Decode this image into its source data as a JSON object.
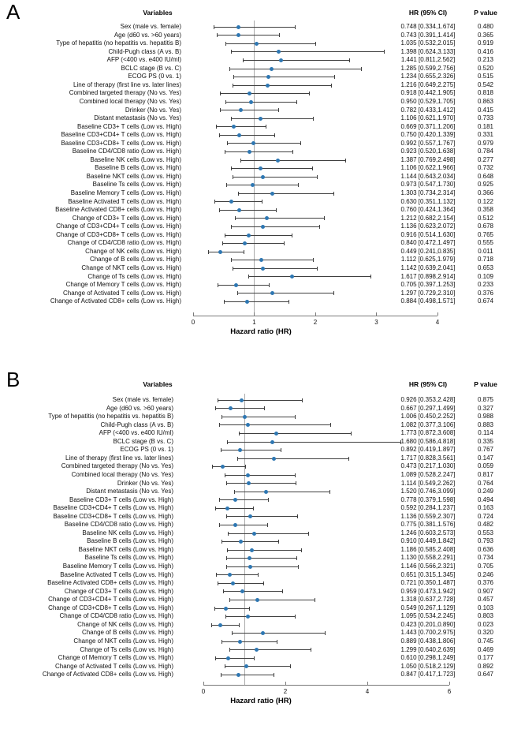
{
  "colors": {
    "point": "#2e77b2",
    "ci_bar": "#3f3f3f",
    "reference_line": "#ababab",
    "axis": "#7a7a7a",
    "text": "#111111"
  },
  "chart_data": [
    {
      "type": "scatter",
      "variant": "forest-plot",
      "panel_label": "A",
      "xlabel": "Hazard ratio (HR)",
      "xlim": [
        0,
        4
      ],
      "xticks": [
        0,
        1,
        2,
        3,
        4
      ],
      "refline_x": 1,
      "grid": false,
      "columns": {
        "variables": "Variables",
        "hr": "HR (95% CI)",
        "p": "P value"
      },
      "rows": [
        {
          "variable": "Sex (male vs. female)",
          "hr": 0.748,
          "ci_low": 0.334,
          "ci_high": 1.674,
          "hr_text": "0.748 [0.334,1.674]",
          "p_text": "0.480"
        },
        {
          "variable": "Age (d60 vs. >60 years)",
          "hr": 0.743,
          "ci_low": 0.391,
          "ci_high": 1.414,
          "hr_text": "0.743 [0.391,1.414]",
          "p_text": "0.365"
        },
        {
          "variable": "Type of hepatitis (no hepatitis vs. hepatitis B)",
          "hr": 1.035,
          "ci_low": 0.532,
          "ci_high": 2.015,
          "hr_text": "1.035 [0.532,2.015]",
          "p_text": "0.919"
        },
        {
          "variable": "Child-Pugh class (A vs. B)",
          "hr": 1.398,
          "ci_low": 0.624,
          "ci_high": 3.133,
          "hr_text": "1.398 [0.624,3.133]",
          "p_text": "0.416"
        },
        {
          "variable": "AFP (<400 vs. e400 IU/ml)",
          "hr": 1.441,
          "ci_low": 0.811,
          "ci_high": 2.562,
          "hr_text": "1.441 [0.811,2.562]",
          "p_text": "0.213"
        },
        {
          "variable": "BCLC  stage (B vs. C)",
          "hr": 1.285,
          "ci_low": 0.599,
          "ci_high": 2.756,
          "hr_text": "1.285 [0.599,2.756]",
          "p_text": "0.520"
        },
        {
          "variable": "ECOG PS (0 vs. 1)",
          "hr": 1.234,
          "ci_low": 0.655,
          "ci_high": 2.326,
          "hr_text": "1.234 [0.655,2.326]",
          "p_text": "0.515"
        },
        {
          "variable": "Line of therapy (first line vs. later lines)",
          "hr": 1.216,
          "ci_low": 0.649,
          "ci_high": 2.275,
          "hr_text": "1.216 [0.649,2.275]",
          "p_text": "0.542"
        },
        {
          "variable": "Combined targeted therapy  (No vs. Yes)",
          "hr": 0.918,
          "ci_low": 0.442,
          "ci_high": 1.905,
          "hr_text": "0.918 [0.442,1.905]",
          "p_text": "0.818"
        },
        {
          "variable": "Combined local therapy (No vs. Yes)",
          "hr": 0.95,
          "ci_low": 0.529,
          "ci_high": 1.705,
          "hr_text": "0.950 [0.529,1.705]",
          "p_text": "0.863"
        },
        {
          "variable": "Drinker (No vs. Yes)",
          "hr": 0.782,
          "ci_low": 0.433,
          "ci_high": 1.412,
          "hr_text": "0.782 [0.433,1.412]",
          "p_text": "0.415"
        },
        {
          "variable": "Distant metastasis (No vs. Yes)",
          "hr": 1.106,
          "ci_low": 0.621,
          "ci_high": 1.97,
          "hr_text": "1.106 [0.621,1.970]",
          "p_text": "0.733"
        },
        {
          "variable": "Baseline CD3+ T cells (Low vs. High)",
          "hr": 0.669,
          "ci_low": 0.371,
          "ci_high": 1.206,
          "hr_text": "0.669 [0.371,1.206]",
          "p_text": "0.181"
        },
        {
          "variable": "Baseline CD3+CD4+ T cells (Low vs. High)",
          "hr": 0.75,
          "ci_low": 0.42,
          "ci_high": 1.339,
          "hr_text": "0.750 [0.420,1.339]",
          "p_text": "0.331"
        },
        {
          "variable": "Baseline CD3+CD8+ T cells (Low vs. High)",
          "hr": 0.992,
          "ci_low": 0.557,
          "ci_high": 1.767,
          "hr_text": "0.992 [0.557,1.767]",
          "p_text": "0.979"
        },
        {
          "variable": "Baseline CD4/CD8 ratio (Low vs. High)",
          "hr": 0.923,
          "ci_low": 0.52,
          "ci_high": 1.638,
          "hr_text": "0.923 [0.520,1.638]",
          "p_text": "0.784"
        },
        {
          "variable": "Baseline NK cells (Low vs. High)",
          "hr": 1.387,
          "ci_low": 0.769,
          "ci_high": 2.498,
          "hr_text": "1.387 [0.769,2.498]",
          "p_text": "0.277"
        },
        {
          "variable": "Baseline B cells (Low vs. High)",
          "hr": 1.106,
          "ci_low": 0.622,
          "ci_high": 1.966,
          "hr_text": "1.106 [0.622,1.966]",
          "p_text": "0.732"
        },
        {
          "variable": "Baseline NKT cells (Low vs. High)",
          "hr": 1.144,
          "ci_low": 0.643,
          "ci_high": 2.034,
          "hr_text": "1.144 [0.643,2.034]",
          "p_text": "0.648"
        },
        {
          "variable": "Baseline Ts cells (Low vs. High)",
          "hr": 0.973,
          "ci_low": 0.547,
          "ci_high": 1.73,
          "hr_text": "0.973 [0.547,1.730]",
          "p_text": "0.925"
        },
        {
          "variable": "Baseline Memory T cells (Low vs. High)",
          "hr": 1.303,
          "ci_low": 0.734,
          "ci_high": 2.314,
          "hr_text": "1.303 [0.734,2.314]",
          "p_text": "0.366"
        },
        {
          "variable": "Baseline Activated T cells (Low vs. High)",
          "hr": 0.63,
          "ci_low": 0.351,
          "ci_high": 1.132,
          "hr_text": "0.630 [0.351,1.132]",
          "p_text": "0.122"
        },
        {
          "variable": "Baseline Activated CD8+ cells (Low vs. High)",
          "hr": 0.76,
          "ci_low": 0.424,
          "ci_high": 1.364,
          "hr_text": "0.760 [0.424,1.364]",
          "p_text": "0.358"
        },
        {
          "variable": "Change of CD3+ T cells (Low vs. High)",
          "hr": 1.212,
          "ci_low": 0.682,
          "ci_high": 2.154,
          "hr_text": "1.212 [0.682,2.154]",
          "p_text": "0.512"
        },
        {
          "variable": "Change of CD3+CD4+ T cells (Low vs. High)",
          "hr": 1.136,
          "ci_low": 0.623,
          "ci_high": 2.072,
          "hr_text": "1.136 [0.623,2.072]",
          "p_text": "0.678"
        },
        {
          "variable": "Change of CD3+CD8+ T cells (Low vs. High)",
          "hr": 0.916,
          "ci_low": 0.514,
          "ci_high": 1.63,
          "hr_text": "0.916 [0.514,1.630]",
          "p_text": "0.765"
        },
        {
          "variable": "Change of CD4/CD8 ratio (Low vs. High)",
          "hr": 0.84,
          "ci_low": 0.472,
          "ci_high": 1.497,
          "hr_text": "0.840 [0.472,1.497]",
          "p_text": "0.555"
        },
        {
          "variable": "Change of NK cells (Low vs. High)",
          "hr": 0.449,
          "ci_low": 0.241,
          "ci_high": 0.835,
          "hr_text": "0.449 [0.241,0.835]",
          "p_text": "0.011"
        },
        {
          "variable": "Change of B cells (Low vs. High)",
          "hr": 1.112,
          "ci_low": 0.625,
          "ci_high": 1.979,
          "hr_text": "1.112 [0.625,1.979]",
          "p_text": "0.718"
        },
        {
          "variable": "Change of NKT cells (Low vs. High)",
          "hr": 1.142,
          "ci_low": 0.639,
          "ci_high": 2.041,
          "hr_text": "1.142 [0.639,2.041]",
          "p_text": "0.653"
        },
        {
          "variable": "Change of Ts cells (Low vs. High)",
          "hr": 1.617,
          "ci_low": 0.898,
          "ci_high": 2.914,
          "hr_text": "1.617 [0.898,2.914]",
          "p_text": "0.109"
        },
        {
          "variable": "Change of Memory T cells (Low vs. High)",
          "hr": 0.705,
          "ci_low": 0.397,
          "ci_high": 1.253,
          "hr_text": "0.705 [0.397,1.253]",
          "p_text": "0.233"
        },
        {
          "variable": "Change of Activated T cells (Low vs. High)",
          "hr": 1.297,
          "ci_low": 0.729,
          "ci_high": 2.31,
          "hr_text": "1.297 [0.729,2.310]",
          "p_text": "0.376"
        },
        {
          "variable": "Change of Activated CD8+ cells (Low vs. High)",
          "hr": 0.884,
          "ci_low": 0.498,
          "ci_high": 1.571,
          "hr_text": "0.884 [0.498,1.571]",
          "p_text": "0.674"
        }
      ]
    },
    {
      "type": "scatter",
      "variant": "forest-plot",
      "panel_label": "B",
      "xlabel": "Hazard ratio (HR)",
      "xlim": [
        0,
        6
      ],
      "xticks": [
        0,
        2,
        4,
        6
      ],
      "refline_x": 1,
      "grid": false,
      "columns": {
        "variables": "Variables",
        "hr": "HR (95% CI)",
        "p": "P value"
      },
      "rows": [
        {
          "variable": "Sex (male vs. female)",
          "hr": 0.926,
          "ci_low": 0.353,
          "ci_high": 2.428,
          "hr_text": "0.926 [0.353,2.428]",
          "p_text": "0.875"
        },
        {
          "variable": "Age (d60 vs. >60 years)",
          "hr": 0.667,
          "ci_low": 0.297,
          "ci_high": 1.499,
          "hr_text": "0.667 [0.297,1.499]",
          "p_text": "0.327"
        },
        {
          "variable": "Type of hepatitis (no hepatitis vs. hepatitis B)",
          "hr": 1.006,
          "ci_low": 0.45,
          "ci_high": 2.252,
          "hr_text": "1.006 [0.450,2.252]",
          "p_text": "0.988"
        },
        {
          "variable": "Child-Pugh class (A vs. B)",
          "hr": 1.082,
          "ci_low": 0.377,
          "ci_high": 3.106,
          "hr_text": "1.082 [0.377,3.106]",
          "p_text": "0.883"
        },
        {
          "variable": "AFP (<400 vs. e400 IU/ml)",
          "hr": 1.773,
          "ci_low": 0.872,
          "ci_high": 3.608,
          "hr_text": "1.773 [0.872,3.608]",
          "p_text": "0.114"
        },
        {
          "variable": "BCLC stage (B vs. C)",
          "hr": 1.68,
          "ci_low": 0.586,
          "ci_high": 4.818,
          "hr_text": "1.680 [0.586,4.818]",
          "p_text": "0.335"
        },
        {
          "variable": "ECOG PS (0 vs. 1)",
          "hr": 0.892,
          "ci_low": 0.419,
          "ci_high": 1.897,
          "hr_text": "0.892 [0.419,1.897]",
          "p_text": "0.767"
        },
        {
          "variable": "Line of therapy (first line vs. later lines)",
          "hr": 1.717,
          "ci_low": 0.828,
          "ci_high": 3.561,
          "hr_text": "1.717 [0.828,3.561]",
          "p_text": "0.147"
        },
        {
          "variable": "Combined targeted therapy (No vs. Yes)",
          "hr": 0.473,
          "ci_low": 0.217,
          "ci_high": 1.03,
          "hr_text": "0.473 [0.217,1.030]",
          "p_text": "0.059"
        },
        {
          "variable": "Combined local therapy (No vs. Yes)",
          "hr": 1.089,
          "ci_low": 0.528,
          "ci_high": 2.247,
          "hr_text": "1.089 [0.528,2.247]",
          "p_text": "0.817"
        },
        {
          "variable": "Drinker (No vs. Yes)",
          "hr": 1.114,
          "ci_low": 0.549,
          "ci_high": 2.262,
          "hr_text": "1.114 [0.549,2.262]",
          "p_text": "0.764"
        },
        {
          "variable": "Distant metastasis (No vs. Yes)",
          "hr": 1.52,
          "ci_low": 0.746,
          "ci_high": 3.099,
          "hr_text": "1.520 [0.746,3.099]",
          "p_text": "0.249"
        },
        {
          "variable": "Baseline CD3+ T cells (Low vs. High)",
          "hr": 0.778,
          "ci_low": 0.379,
          "ci_high": 1.598,
          "hr_text": "0.778 [0.379,1.598]",
          "p_text": "0.494"
        },
        {
          "variable": "Baseline CD3+CD4+ T cells (Low vs. High)",
          "hr": 0.592,
          "ci_low": 0.284,
          "ci_high": 1.237,
          "hr_text": "0.592 [0.284,1.237]",
          "p_text": "0.163"
        },
        {
          "variable": "Baseline CD3+CD8+ T cells (Low vs. High)",
          "hr": 1.136,
          "ci_low": 0.559,
          "ci_high": 2.307,
          "hr_text": "1.136 [0.559,2.307]",
          "p_text": "0.724"
        },
        {
          "variable": "Baseline CD4/CD8 ratio (Low vs. High)",
          "hr": 0.775,
          "ci_low": 0.381,
          "ci_high": 1.576,
          "hr_text": "0.775 [0.381,1.576]",
          "p_text": "0.482"
        },
        {
          "variable": "Baseline NK cells (Low vs. High)",
          "hr": 1.246,
          "ci_low": 0.603,
          "ci_high": 2.573,
          "hr_text": "1.246 [0.603,2.573]",
          "p_text": "0.553"
        },
        {
          "variable": "Baseline B cells (Low vs. High)",
          "hr": 0.91,
          "ci_low": 0.449,
          "ci_high": 1.842,
          "hr_text": "0.910 [0.449,1.842]",
          "p_text": "0.793"
        },
        {
          "variable": "Baseline NKT cells (Low vs. High)",
          "hr": 1.186,
          "ci_low": 0.585,
          "ci_high": 2.408,
          "hr_text": "1.186 [0.585,2.408]",
          "p_text": "0.636"
        },
        {
          "variable": "Baseline Ts cells (Low vs. High)",
          "hr": 1.13,
          "ci_low": 0.558,
          "ci_high": 2.291,
          "hr_text": "1.130 [0.558,2.291]",
          "p_text": "0.734"
        },
        {
          "variable": "Baseline Memory T cells (Low vs. High)",
          "hr": 1.146,
          "ci_low": 0.566,
          "ci_high": 2.321,
          "hr_text": "1.146 [0.566,2.321]",
          "p_text": "0.705"
        },
        {
          "variable": "Baseline Activated T cells (Low vs. High)",
          "hr": 0.651,
          "ci_low": 0.315,
          "ci_high": 1.345,
          "hr_text": "0.651 [0.315,1.345]",
          "p_text": "0.246"
        },
        {
          "variable": "Baseline Activated CD8+ cells (Low vs. High)",
          "hr": 0.721,
          "ci_low": 0.35,
          "ci_high": 1.487,
          "hr_text": "0.721 [0.350,1.487]",
          "p_text": "0.376"
        },
        {
          "variable": "Change of CD3+ T cells (Low vs. High)",
          "hr": 0.959,
          "ci_low": 0.473,
          "ci_high": 1.942,
          "hr_text": "0.959 [0.473,1.942]",
          "p_text": "0.907"
        },
        {
          "variable": "Change of CD3+CD4+ T cells (Low vs. High)",
          "hr": 1.318,
          "ci_low": 0.637,
          "ci_high": 2.728,
          "hr_text": "1.318 [0.637,2.728]",
          "p_text": "0.457"
        },
        {
          "variable": "Change of CD3+CD8+ T cells (Low vs. High)",
          "hr": 0.549,
          "ci_low": 0.267,
          "ci_high": 1.129,
          "hr_text": "0.549 [0.267,1.129]",
          "p_text": "0.103"
        },
        {
          "variable": "Change of CD4/CD8 ratio (Low vs. High)",
          "hr": 1.095,
          "ci_low": 0.534,
          "ci_high": 2.245,
          "hr_text": "1.095 [0.534,2.245]",
          "p_text": "0.803"
        },
        {
          "variable": "Change of NK cells (Low vs. High)",
          "hr": 0.423,
          "ci_low": 0.201,
          "ci_high": 0.89,
          "hr_text": "0.423 [0.201,0.890]",
          "p_text": "0.023"
        },
        {
          "variable": "Change of B cells (Low vs. High)",
          "hr": 1.443,
          "ci_low": 0.7,
          "ci_high": 2.975,
          "hr_text": "1.443 [0.700,2.975]",
          "p_text": "0.320"
        },
        {
          "variable": "Change of NKT cells (Low vs. High)",
          "hr": 0.889,
          "ci_low": 0.438,
          "ci_high": 1.806,
          "hr_text": "0.889 [0.438,1.806]",
          "p_text": "0.745"
        },
        {
          "variable": "Change of Ts cells (Low vs. High)",
          "hr": 1.299,
          "ci_low": 0.64,
          "ci_high": 2.639,
          "hr_text": "1.299 [0.640,2.639]",
          "p_text": "0.469"
        },
        {
          "variable": "Change of Memory T cells (Low vs. High)",
          "hr": 0.61,
          "ci_low": 0.298,
          "ci_high": 1.249,
          "hr_text": "0.610 [0.298,1.249]",
          "p_text": "0.177"
        },
        {
          "variable": "Change of Activated T cells (Low vs. High)",
          "hr": 1.05,
          "ci_low": 0.518,
          "ci_high": 2.129,
          "hr_text": "1.050 [0.518,2.129]",
          "p_text": "0.892"
        },
        {
          "variable": "Change of Activated CD8+ cells (Low vs. High)",
          "hr": 0.847,
          "ci_low": 0.417,
          "ci_high": 1.723,
          "hr_text": "0.847 [0.417,1.723]",
          "p_text": "0.647"
        }
      ]
    }
  ]
}
